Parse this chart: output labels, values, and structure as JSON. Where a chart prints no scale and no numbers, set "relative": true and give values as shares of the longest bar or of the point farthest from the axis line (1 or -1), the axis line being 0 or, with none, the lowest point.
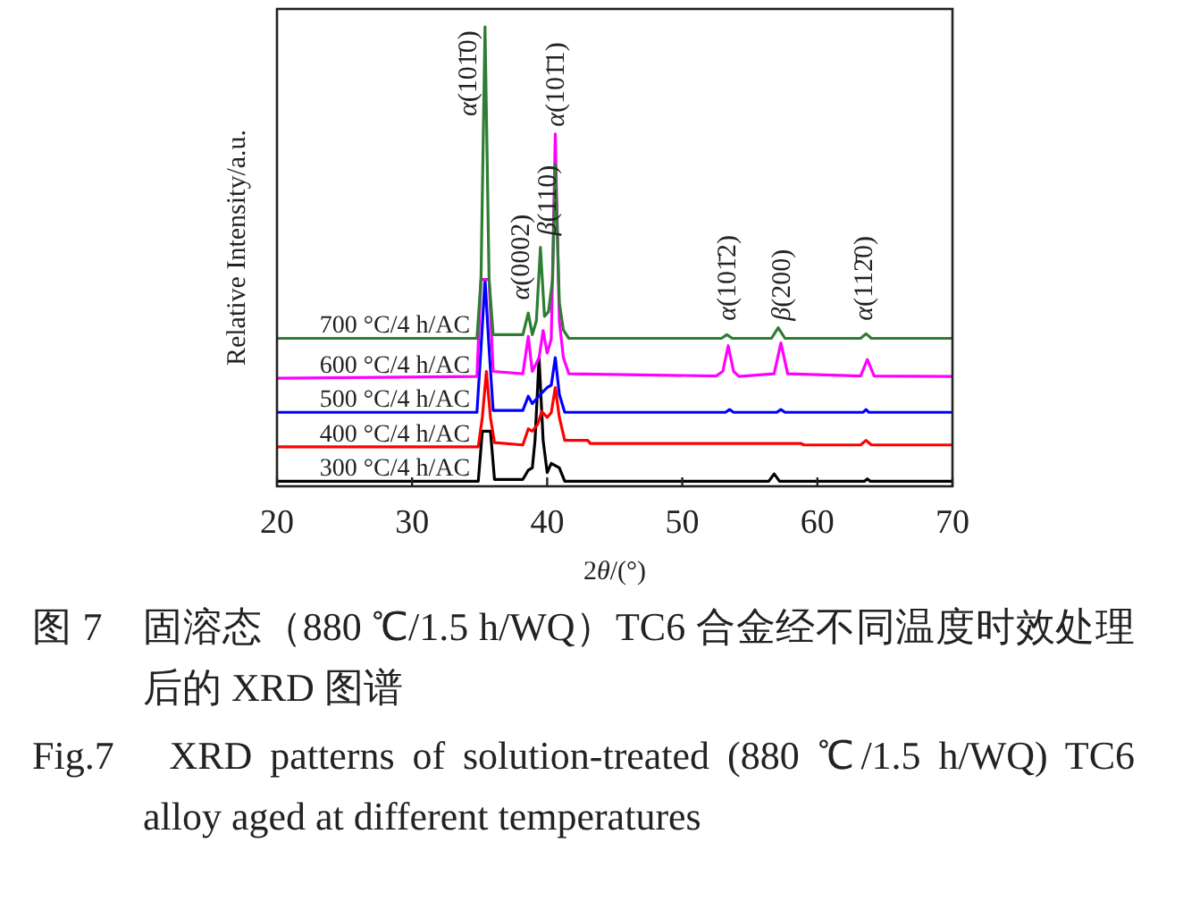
{
  "chart_data": {
    "type": "line",
    "relative": true,
    "xlabel": "2θ/(°)",
    "ylabel": "Relative Intensity/a.u.",
    "xlim": [
      20,
      70
    ],
    "xticks": [
      20,
      30,
      40,
      50,
      60,
      70
    ],
    "series": [
      {
        "name": "700 °C/4 h/AC",
        "color": "#2e7d32",
        "x": [
          20,
          34.8,
          35.1,
          35.4,
          35.7,
          36.0,
          38.2,
          38.6,
          38.9,
          39.2,
          39.5,
          39.8,
          40.1,
          40.4,
          40.6,
          40.9,
          41.2,
          41.6,
          52.9,
          53.3,
          53.7,
          56.6,
          57.1,
          57.6,
          63.2,
          63.6,
          64.0,
          70
        ],
        "values": [
          0.322,
          0.322,
          0.45,
          1.0,
          0.45,
          0.33,
          0.33,
          0.377,
          0.33,
          0.36,
          0.52,
          0.37,
          0.38,
          0.45,
          0.7,
          0.4,
          0.34,
          0.322,
          0.322,
          0.33,
          0.322,
          0.322,
          0.345,
          0.322,
          0.322,
          0.332,
          0.322,
          0.322
        ]
      },
      {
        "name": "600 °C/4 h/AC",
        "color": "#ff00ff",
        "x": [
          20,
          34.8,
          35.1,
          35.7,
          36.0,
          38.2,
          38.6,
          38.9,
          39.4,
          39.7,
          40.0,
          40.3,
          40.6,
          40.9,
          41.2,
          41.6,
          52.5,
          53.0,
          53.4,
          53.8,
          54.2,
          56.8,
          57.3,
          57.8,
          63.2,
          63.7,
          64.2,
          70
        ],
        "values": [
          0.235,
          0.239,
          0.45,
          0.45,
          0.25,
          0.245,
          0.326,
          0.25,
          0.28,
          0.339,
          0.29,
          0.32,
          0.767,
          0.36,
          0.28,
          0.245,
          0.24,
          0.25,
          0.306,
          0.25,
          0.239,
          0.245,
          0.312,
          0.245,
          0.24,
          0.276,
          0.24,
          0.239
        ]
      },
      {
        "name": "500 °C/4 h/AC",
        "color": "#0000ff",
        "x": [
          20,
          34.8,
          35.1,
          35.4,
          35.7,
          36.0,
          38.2,
          38.6,
          38.9,
          39.5,
          40.0,
          40.3,
          40.6,
          40.9,
          41.3,
          53.2,
          53.5,
          53.8,
          57.0,
          57.3,
          57.6,
          63.4,
          63.6,
          63.8,
          70
        ],
        "values": [
          0.161,
          0.161,
          0.3,
          0.45,
          0.3,
          0.165,
          0.165,
          0.196,
          0.18,
          0.2,
          0.215,
          0.22,
          0.28,
          0.2,
          0.161,
          0.161,
          0.167,
          0.161,
          0.161,
          0.167,
          0.161,
          0.161,
          0.167,
          0.161,
          0.161
        ]
      },
      {
        "name": "400 °C/4 h/AC",
        "color": "#ff0000",
        "x": [
          20,
          34.9,
          35.2,
          35.5,
          35.8,
          36.1,
          38.2,
          38.6,
          38.9,
          39.3,
          39.6,
          40.0,
          40.3,
          40.6,
          40.9,
          41.3,
          43.0,
          43.2,
          53.0,
          58.8,
          59.0,
          63.2,
          63.6,
          64.0,
          70
        ],
        "values": [
          0.086,
          0.086,
          0.15,
          0.25,
          0.15,
          0.095,
          0.09,
          0.125,
          0.12,
          0.135,
          0.163,
          0.15,
          0.16,
          0.215,
          0.15,
          0.1,
          0.1,
          0.093,
          0.093,
          0.093,
          0.09,
          0.09,
          0.1,
          0.09,
          0.09
        ]
      },
      {
        "name": "300 °C/4 h/AC",
        "color": "#000000",
        "x": [
          20,
          34.9,
          35.2,
          35.8,
          36.1,
          38.2,
          38.6,
          38.9,
          39.1,
          39.4,
          39.7,
          40.0,
          40.3,
          40.9,
          41.3,
          56.4,
          56.8,
          57.2,
          63.5,
          63.7,
          63.9,
          70
        ],
        "values": [
          0.011,
          0.011,
          0.12,
          0.12,
          0.015,
          0.015,
          0.035,
          0.04,
          0.1,
          0.28,
          0.1,
          0.03,
          0.05,
          0.04,
          0.011,
          0.011,
          0.027,
          0.011,
          0.011,
          0.016,
          0.011,
          0.011
        ]
      }
    ],
    "annotations": [
      {
        "text": "α(101̄0)",
        "x": 35.4,
        "y": 1.0
      },
      {
        "text": "α(0002)",
        "x": 38.0,
        "y": 0.39
      },
      {
        "text": "β(110)",
        "x": 39.96,
        "y": 0.53
      },
      {
        "text": "α(101̄1)",
        "x": 40.6,
        "y": 0.767
      },
      {
        "text": "α(101̄2)",
        "x": 53.3,
        "y": 0.345
      },
      {
        "text": "β(200)",
        "x": 57.3,
        "y": 0.345
      },
      {
        "text": "α(112̄0)",
        "x": 63.4,
        "y": 0.345
      },
      "图 7　固溶态（880 ℃/1.5 h/WQ）TC6 合金经不同温度时效处理后的 XRD 图谱",
      "Fig.7　XRD patterns of solution-treated (880 ℃/1.5 h/WQ) TC6 alloy aged at different temperatures"
    ]
  }
}
